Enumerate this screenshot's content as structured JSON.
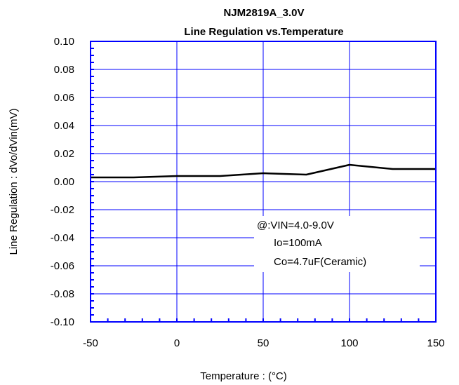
{
  "chart_data": {
    "type": "line",
    "title": "NJM2819A_3.0V",
    "subtitle": "Line Regulation vs.Temperature",
    "xlabel": "Temperature : (°C)",
    "ylabel": "Line Regulation : dVo/dVin(mV)",
    "xlim": [
      -50,
      150
    ],
    "ylim": [
      -0.1,
      0.1
    ],
    "x_ticks": [
      "-50",
      "0",
      "50",
      "100",
      "150"
    ],
    "x_tick_values": [
      -50,
      0,
      50,
      100,
      150
    ],
    "y_ticks": [
      "0.10",
      "0.08",
      "0.06",
      "0.04",
      "0.02",
      "0.00",
      "-0.02",
      "-0.04",
      "-0.06",
      "-0.08",
      "-0.10"
    ],
    "y_tick_values": [
      0.1,
      0.08,
      0.06,
      0.04,
      0.02,
      0.0,
      -0.02,
      -0.04,
      -0.06,
      -0.08,
      -0.1
    ],
    "grid": true,
    "series": [
      {
        "x": [
          -50,
          -25,
          0,
          25,
          50,
          75,
          100,
          125,
          150
        ],
        "y": [
          0.003,
          0.003,
          0.004,
          0.004,
          0.006,
          0.005,
          0.012,
          0.009,
          0.009
        ]
      }
    ],
    "annotation": [
      "@:VIN=4.0-9.0V",
      "Io=100mA",
      "Co=4.7uF(Ceramic)"
    ],
    "colors": {
      "axes": "#0000ff",
      "grid": "#0000ff",
      "line": "#000000"
    }
  }
}
